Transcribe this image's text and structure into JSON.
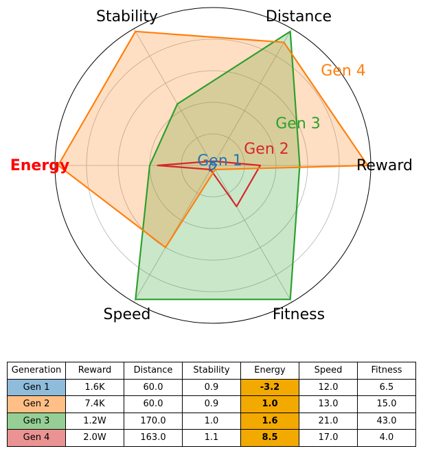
{
  "chart_data": {
    "type": "radar",
    "axes": [
      "Reward",
      "Distance",
      "Stability",
      "Energy",
      "Speed",
      "Fitness"
    ],
    "highlighted_axis": "Energy",
    "rlim": [
      0,
      10
    ],
    "grid": true,
    "series": [
      {
        "name": "Gen 1",
        "color": "#1f77b4",
        "fill": "none",
        "values": [
          0.2,
          0.2,
          0.2,
          0.2,
          0.4,
          0.2
        ]
      },
      {
        "name": "Gen 2",
        "color": "#d62728",
        "fill": "none",
        "values": [
          3.0,
          0.3,
          0.3,
          3.5,
          0.3,
          3.0
        ]
      },
      {
        "name": "Gen 3",
        "color": "#2ca02c",
        "fill": "#2ca02c",
        "values": [
          5.5,
          9.8,
          4.5,
          4.0,
          9.8,
          9.8
        ]
      },
      {
        "name": "Gen 4",
        "color": "#ff7f0e",
        "fill": "#ff7f0e",
        "values": [
          9.8,
          9.0,
          9.8,
          9.8,
          6.0,
          0.3
        ]
      }
    ],
    "table": {
      "columns": [
        "Generation",
        "Reward",
        "Distance",
        "Stability",
        "Energy",
        "Speed",
        "Fitness"
      ],
      "rows": [
        {
          "cells": [
            "Gen 1",
            "1.6K",
            "60.0",
            "0.9",
            "-3.2",
            "12.0",
            "6.5"
          ],
          "color": "#8fbcdb"
        },
        {
          "cells": [
            "Gen 2",
            "7.4K",
            "60.0",
            "0.9",
            "1.0",
            "13.0",
            "15.0"
          ],
          "color": "#ffbf86"
        },
        {
          "cells": [
            "Gen 3",
            "1.2W",
            "170.0",
            "1.0",
            "1.6",
            "21.0",
            "43.0"
          ],
          "color": "#95cf95"
        },
        {
          "cells": [
            "Gen 4",
            "2.0W",
            "163.0",
            "1.1",
            "8.5",
            "17.0",
            "4.0"
          ],
          "color": "#eb9393"
        }
      ]
    }
  }
}
